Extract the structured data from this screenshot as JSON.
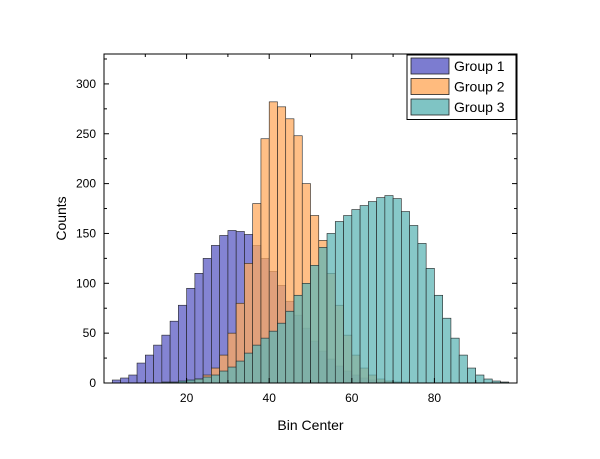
{
  "chart_data": {
    "type": "bar",
    "title": "",
    "xlabel": "Bin Center",
    "ylabel": "Counts",
    "xlim": [
      0,
      100
    ],
    "ylim": [
      0,
      330
    ],
    "bin_width": 2,
    "x_ticks": [
      20,
      40,
      60,
      80
    ],
    "y_ticks": [
      0,
      50,
      100,
      150,
      200,
      250,
      300
    ],
    "grid": false,
    "legend_position": "top-right",
    "series": [
      {
        "name": "Group 1",
        "color": "#5b5bc4",
        "x": [
          3,
          5,
          7,
          9,
          11,
          13,
          15,
          17,
          19,
          21,
          23,
          25,
          27,
          29,
          31,
          33,
          35,
          37,
          39,
          41,
          43,
          45,
          47,
          49,
          51,
          53,
          55,
          57,
          59,
          61,
          63,
          65,
          67,
          69,
          71
        ],
        "values": [
          3,
          5,
          8,
          20,
          28,
          38,
          48,
          62,
          78,
          95,
          110,
          125,
          138,
          148,
          153,
          152,
          149,
          138,
          125,
          112,
          98,
          82,
          68,
          55,
          42,
          32,
          24,
          17,
          12,
          8,
          5,
          3,
          2,
          1,
          1
        ]
      },
      {
        "name": "Group 2",
        "color": "#ffaa5e",
        "x": [
          19,
          21,
          23,
          25,
          27,
          29,
          31,
          33,
          35,
          37,
          39,
          41,
          43,
          45,
          47,
          49,
          51,
          53,
          55,
          57,
          59,
          61,
          63,
          65,
          67,
          69,
          71,
          73
        ],
        "values": [
          1,
          2,
          4,
          8,
          15,
          28,
          50,
          80,
          120,
          180,
          245,
          282,
          277,
          265,
          248,
          200,
          168,
          143,
          110,
          78,
          48,
          28,
          15,
          8,
          4,
          2,
          1,
          1
        ]
      },
      {
        "name": "Group 3",
        "color": "#5fb5b5",
        "x": [
          15,
          17,
          19,
          21,
          23,
          25,
          27,
          29,
          31,
          33,
          35,
          37,
          39,
          41,
          43,
          45,
          47,
          49,
          51,
          53,
          55,
          57,
          59,
          61,
          63,
          65,
          67,
          69,
          71,
          73,
          75,
          77,
          79,
          81,
          83,
          85,
          87,
          89,
          91,
          93,
          95,
          97
        ],
        "values": [
          1,
          1,
          2,
          3,
          4,
          6,
          8,
          12,
          16,
          22,
          30,
          38,
          45,
          52,
          60,
          72,
          88,
          100,
          118,
          136,
          150,
          162,
          168,
          174,
          178,
          182,
          186,
          188,
          185,
          172,
          158,
          140,
          115,
          88,
          65,
          45,
          28,
          15,
          8,
          4,
          2,
          1
        ]
      }
    ]
  }
}
